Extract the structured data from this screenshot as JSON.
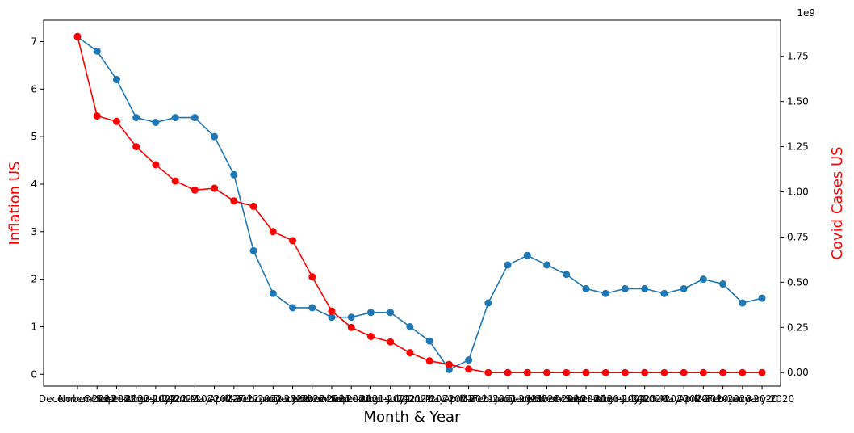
{
  "chart_data": {
    "type": "line",
    "xlabel": "Month & Year",
    "y_left_label": "Inflation US",
    "y_right_label": "Covid Cases US",
    "y_right_offset_label": "1e9",
    "y_left_lim": [
      -0.25,
      7.45
    ],
    "y_right_lim": [
      -0.075,
      1.95
    ],
    "y_left_ticks": [
      "0",
      "1",
      "2",
      "3",
      "4",
      "5",
      "6",
      "7"
    ],
    "y_right_ticks": [
      "0.00",
      "0.25",
      "0.50",
      "0.75",
      "1.00",
      "1.25",
      "1.50",
      "1.75"
    ],
    "categories": [
      "December-2022",
      "November-2022",
      "October-2022",
      "September-2022",
      "August-2022",
      "July-2022",
      "June-2022",
      "May-2022",
      "April-2022",
      "March-2022",
      "February-2022",
      "January-2022",
      "December-2021",
      "November-2021",
      "October-2021",
      "September-2021",
      "August-2021",
      "July-2021",
      "June-2021",
      "May-2021",
      "April-2021",
      "March-2021",
      "February-2021",
      "January-2021",
      "December-2020",
      "November-2020",
      "October-2020",
      "September-2020",
      "August-2020",
      "July-2020",
      "June-2020",
      "May-2020",
      "April-2020",
      "March-2020",
      "February-2020",
      "January-2020"
    ],
    "series": [
      {
        "name": "Inflation US",
        "axis": "left",
        "color": "#1f77b4",
        "values": [
          7.1,
          6.8,
          6.2,
          5.4,
          5.3,
          5.4,
          5.4,
          5.0,
          4.2,
          2.6,
          1.7,
          1.4,
          1.4,
          1.2,
          1.2,
          1.3,
          1.3,
          1.0,
          0.7,
          0.1,
          0.3,
          1.5,
          2.3,
          2.5,
          2.3,
          2.1,
          1.8,
          1.7,
          1.8,
          1.8,
          1.7,
          1.8,
          2.0,
          1.9,
          1.5,
          1.6
        ]
      },
      {
        "name": "Covid Cases US",
        "axis": "right",
        "color": "#ff0000",
        "values": [
          1.86,
          1.42,
          1.39,
          1.25,
          1.15,
          1.06,
          1.01,
          1.02,
          0.95,
          0.92,
          0.78,
          0.73,
          0.53,
          0.34,
          0.25,
          0.2,
          0.17,
          0.11,
          0.065,
          0.045,
          0.02,
          0.0,
          0.0,
          0.0,
          0.0,
          0.0,
          0.0,
          0.0,
          0.0,
          0.0,
          0.0,
          0.0,
          0.0,
          0.0,
          0.0,
          0.0
        ]
      }
    ],
    "grid": false
  }
}
